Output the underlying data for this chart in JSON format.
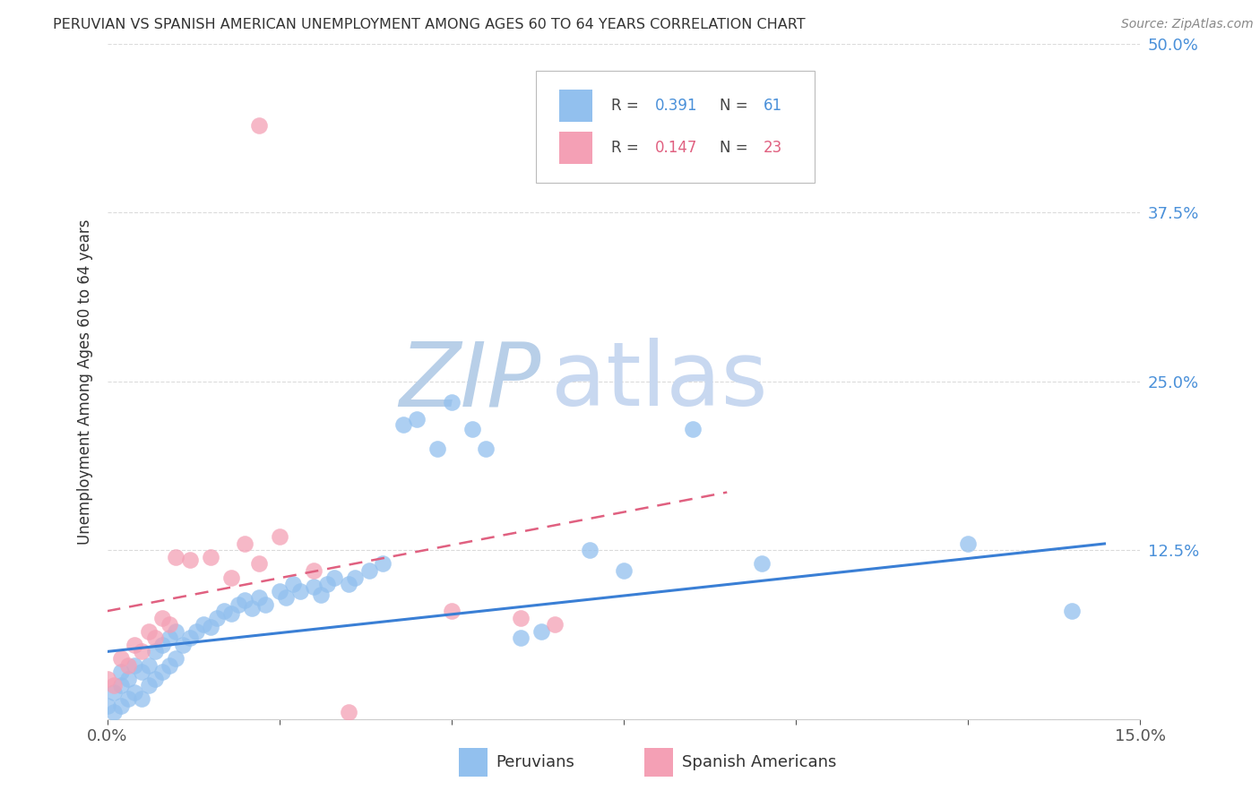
{
  "title": "PERUVIAN VS SPANISH AMERICAN UNEMPLOYMENT AMONG AGES 60 TO 64 YEARS CORRELATION CHART",
  "source": "Source: ZipAtlas.com",
  "ylabel": "Unemployment Among Ages 60 to 64 years",
  "xlim": [
    0.0,
    0.15
  ],
  "ylim": [
    0.0,
    0.5
  ],
  "legend_label_blue": "Peruvians",
  "legend_label_pink": "Spanish Americans",
  "blue_color": "#92C0EE",
  "pink_color": "#F4A0B5",
  "blue_line_color": "#3a7fd5",
  "pink_line_color": "#e06080",
  "grid_color": "#cccccc",
  "watermark_zip_color": "#b8cfe8",
  "watermark_atlas_color": "#c8d8f0",
  "blue_scatter_x": [
    0.0,
    0.001,
    0.001,
    0.002,
    0.002,
    0.002,
    0.003,
    0.003,
    0.004,
    0.004,
    0.005,
    0.005,
    0.006,
    0.006,
    0.007,
    0.007,
    0.008,
    0.008,
    0.009,
    0.009,
    0.01,
    0.01,
    0.011,
    0.012,
    0.013,
    0.014,
    0.015,
    0.016,
    0.017,
    0.018,
    0.019,
    0.02,
    0.021,
    0.022,
    0.023,
    0.025,
    0.026,
    0.027,
    0.028,
    0.03,
    0.031,
    0.032,
    0.033,
    0.035,
    0.036,
    0.038,
    0.04,
    0.043,
    0.045,
    0.048,
    0.05,
    0.053,
    0.055,
    0.06,
    0.063,
    0.07,
    0.075,
    0.085,
    0.095,
    0.125,
    0.14
  ],
  "blue_scatter_y": [
    0.01,
    0.005,
    0.02,
    0.01,
    0.025,
    0.035,
    0.015,
    0.03,
    0.02,
    0.04,
    0.015,
    0.035,
    0.025,
    0.04,
    0.03,
    0.05,
    0.035,
    0.055,
    0.04,
    0.06,
    0.045,
    0.065,
    0.055,
    0.06,
    0.065,
    0.07,
    0.068,
    0.075,
    0.08,
    0.078,
    0.085,
    0.088,
    0.082,
    0.09,
    0.085,
    0.095,
    0.09,
    0.1,
    0.095,
    0.098,
    0.092,
    0.1,
    0.105,
    0.1,
    0.105,
    0.11,
    0.115,
    0.218,
    0.222,
    0.2,
    0.235,
    0.215,
    0.2,
    0.06,
    0.065,
    0.125,
    0.11,
    0.215,
    0.115,
    0.13,
    0.08
  ],
  "pink_scatter_x": [
    0.0,
    0.001,
    0.002,
    0.003,
    0.004,
    0.005,
    0.006,
    0.007,
    0.008,
    0.009,
    0.01,
    0.012,
    0.015,
    0.018,
    0.02,
    0.022,
    0.025,
    0.03,
    0.035,
    0.05,
    0.06,
    0.065,
    0.022
  ],
  "pink_scatter_y": [
    0.03,
    0.025,
    0.045,
    0.04,
    0.055,
    0.05,
    0.065,
    0.06,
    0.075,
    0.07,
    0.12,
    0.118,
    0.12,
    0.105,
    0.13,
    0.115,
    0.135,
    0.11,
    0.005,
    0.08,
    0.075,
    0.07,
    0.44
  ],
  "blue_trend_x": [
    0.0,
    0.145
  ],
  "blue_trend_y": [
    0.05,
    0.13
  ],
  "pink_trend_x": [
    0.0,
    0.09
  ],
  "pink_trend_y": [
    0.08,
    0.168
  ]
}
